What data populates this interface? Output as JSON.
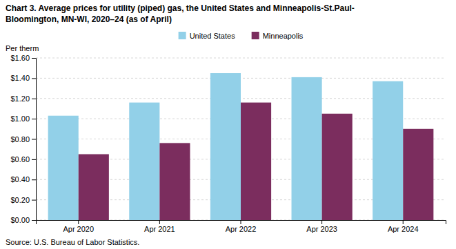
{
  "chart_data": {
    "type": "bar",
    "title": "Chart 3. Average prices for utility (piped) gas, the United States and Minneapolis-St.Paul-",
    "subtitle": "Bloomington, MN-WI, 2020–24 (as of April)",
    "ylabel": "Per therm",
    "source": "Source: U.S. Bureau of Labor Statistics.",
    "categories": [
      "Apr 2020",
      "Apr 2021",
      "Apr 2022",
      "Apr 2023",
      "Apr 2024"
    ],
    "series": [
      {
        "name": "United States",
        "color": "#92D0E8",
        "values": [
          1.03,
          1.16,
          1.45,
          1.41,
          1.37
        ]
      },
      {
        "name": "Minneapolis",
        "color": "#7B2D5E",
        "values": [
          0.65,
          0.76,
          1.16,
          1.05,
          0.9
        ]
      }
    ],
    "ylim": [
      0.0,
      1.6
    ],
    "yticks": [
      {
        "value": 0.0,
        "label": "$0.00"
      },
      {
        "value": 0.2,
        "label": "$0.20"
      },
      {
        "value": 0.4,
        "label": "$0.40"
      },
      {
        "value": 0.6,
        "label": "$0.60"
      },
      {
        "value": 0.8,
        "label": "$0.80"
      },
      {
        "value": 1.0,
        "label": "$1.00"
      },
      {
        "value": 1.2,
        "label": "$1.20"
      },
      {
        "value": 1.4,
        "label": "$1.40"
      },
      {
        "value": 1.6,
        "label": "$1.60"
      }
    ],
    "grid": true,
    "legend": "top"
  }
}
